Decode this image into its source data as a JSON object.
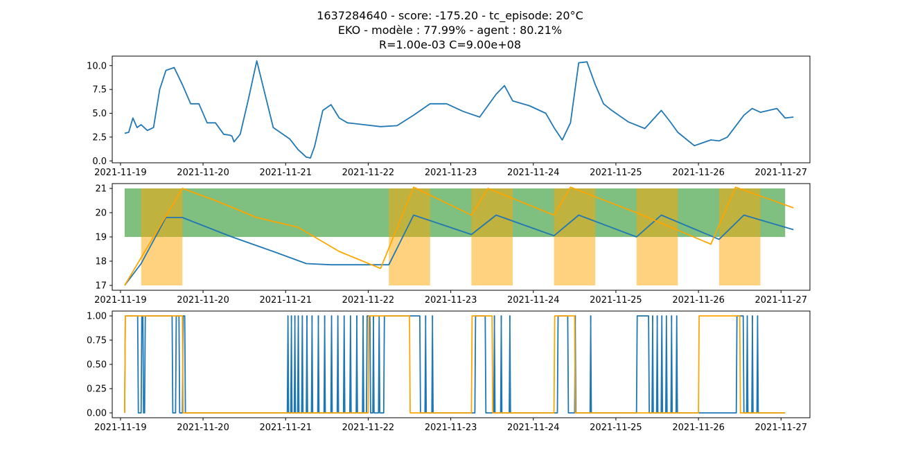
{
  "colors": {
    "blue": "#1f77b4",
    "orange": "#ffa500",
    "green": "#008000",
    "band_orange": "#ffa500"
  },
  "chart_data": {
    "title_lines": [
      "1637284640 - score: -175.20 - tc_episode: 20°C",
      "EKO - modèle : 77.99% - agent : 80.21%",
      "R=1.00e-03 C=9.00e+08"
    ],
    "x_range": [
      "2021-11-18T21:36",
      "2021-11-27T08:24"
    ],
    "x_ticks": [
      "2021-11-19",
      "2021-11-20",
      "2021-11-21",
      "2021-11-22",
      "2021-11-23",
      "2021-11-24",
      "2021-11-25",
      "2021-11-26",
      "2021-11-27"
    ],
    "panels": [
      {
        "type": "line",
        "ylim": [
          -0.2,
          11.0
        ],
        "y_ticks": [
          0.0,
          2.5,
          5.0,
          7.5,
          10.0
        ],
        "y_tick_labels": [
          "0.0",
          "2.5",
          "5.0",
          "7.5",
          "10.0"
        ],
        "series": [
          {
            "color": "blue",
            "points": [
              [
                "2021-11-19T01:12",
                2.9
              ],
              [
                "2021-11-19T02:24",
                3.0
              ],
              [
                "2021-11-19T03:36",
                4.5
              ],
              [
                "2021-11-19T04:48",
                3.5
              ],
              [
                "2021-11-19T06:00",
                3.8
              ],
              [
                "2021-11-19T07:48",
                3.2
              ],
              [
                "2021-11-19T09:36",
                3.5
              ],
              [
                "2021-11-19T11:24",
                7.5
              ],
              [
                "2021-11-19T13:12",
                9.5
              ],
              [
                "2021-11-19T15:36",
                9.8
              ],
              [
                "2021-11-19T18:00",
                8.0
              ],
              [
                "2021-11-19T20:24",
                6.0
              ],
              [
                "2021-11-19T22:48",
                6.0
              ],
              [
                "2021-11-20T01:12",
                4.0
              ],
              [
                "2021-11-20T03:36",
                4.0
              ],
              [
                "2021-11-20T06:00",
                2.8
              ],
              [
                "2021-11-20T07:48",
                2.7
              ],
              [
                "2021-11-20T08:24",
                2.6
              ],
              [
                "2021-11-20T09:00",
                2.0
              ],
              [
                "2021-11-20T10:48",
                2.8
              ],
              [
                "2021-11-20T13:12",
                6.5
              ],
              [
                "2021-11-20T15:36",
                10.5
              ],
              [
                "2021-11-20T18:00",
                7.0
              ],
              [
                "2021-11-20T20:24",
                3.5
              ],
              [
                "2021-11-20T22:48",
                2.9
              ],
              [
                "2021-11-21T01:12",
                2.3
              ],
              [
                "2021-11-21T03:36",
                1.2
              ],
              [
                "2021-11-21T06:00",
                0.4
              ],
              [
                "2021-11-21T07:12",
                0.3
              ],
              [
                "2021-11-21T08:24",
                1.5
              ],
              [
                "2021-11-21T10:48",
                5.3
              ],
              [
                "2021-11-21T13:12",
                5.9
              ],
              [
                "2021-11-21T15:36",
                4.5
              ],
              [
                "2021-11-21T18:00",
                4.0
              ],
              [
                "2021-11-21T22:48",
                3.8
              ],
              [
                "2021-11-22T03:36",
                3.6
              ],
              [
                "2021-11-22T08:24",
                3.7
              ],
              [
                "2021-11-22T13:12",
                4.8
              ],
              [
                "2021-11-22T18:00",
                6.0
              ],
              [
                "2021-11-22T22:48",
                6.0
              ],
              [
                "2021-11-23T03:36",
                5.2
              ],
              [
                "2021-11-23T08:24",
                4.6
              ],
              [
                "2021-11-23T13:12",
                7.0
              ],
              [
                "2021-11-23T15:36",
                7.9
              ],
              [
                "2021-11-23T18:00",
                6.3
              ],
              [
                "2021-11-23T22:48",
                5.8
              ],
              [
                "2021-11-24T03:36",
                5.0
              ],
              [
                "2021-11-24T06:00",
                3.5
              ],
              [
                "2021-11-24T08:24",
                2.2
              ],
              [
                "2021-11-24T10:48",
                4.0
              ],
              [
                "2021-11-24T13:12",
                10.3
              ],
              [
                "2021-11-24T15:36",
                10.4
              ],
              [
                "2021-11-24T18:00",
                8.0
              ],
              [
                "2021-11-24T20:24",
                6.0
              ],
              [
                "2021-11-24T22:48",
                5.3
              ],
              [
                "2021-11-25T03:36",
                4.1
              ],
              [
                "2021-11-25T08:24",
                3.4
              ],
              [
                "2021-11-25T13:12",
                5.3
              ],
              [
                "2021-11-25T15:36",
                4.2
              ],
              [
                "2021-11-25T18:00",
                3.0
              ],
              [
                "2021-11-25T22:48",
                1.6
              ],
              [
                "2021-11-26T03:36",
                2.2
              ],
              [
                "2021-11-26T06:00",
                2.1
              ],
              [
                "2021-11-26T08:24",
                2.5
              ],
              [
                "2021-11-26T13:12",
                4.8
              ],
              [
                "2021-11-26T15:36",
                5.5
              ],
              [
                "2021-11-26T18:00",
                5.1
              ],
              [
                "2021-11-26T22:48",
                5.5
              ],
              [
                "2021-11-27T01:12",
                4.5
              ],
              [
                "2021-11-27T03:36",
                4.6
              ]
            ]
          }
        ]
      },
      {
        "type": "line",
        "ylim": [
          16.8,
          21.2
        ],
        "y_ticks": [
          17,
          18,
          19,
          20,
          21
        ],
        "y_tick_labels": [
          "17",
          "18",
          "19",
          "20",
          "21"
        ],
        "comfort_band": {
          "y0": 19,
          "y1": 21,
          "x0": "2021-11-19T01:12",
          "x1": "2021-11-27T01:12",
          "color": "green",
          "opacity": 0.5
        },
        "occupancy_bands": {
          "y0": 17,
          "y1": 21,
          "color": "band_orange",
          "opacity": 0.5,
          "intervals": [
            [
              "2021-11-19T06:00",
              "2021-11-19T18:00"
            ],
            [
              "2021-11-22T06:00",
              "2021-11-22T18:00"
            ],
            [
              "2021-11-23T06:00",
              "2021-11-23T18:00"
            ],
            [
              "2021-11-24T06:00",
              "2021-11-24T18:00"
            ],
            [
              "2021-11-25T06:00",
              "2021-11-25T18:00"
            ],
            [
              "2021-11-26T06:00",
              "2021-11-26T18:00"
            ]
          ]
        },
        "series": [
          {
            "color": "blue",
            "points": [
              [
                "2021-11-19T01:12",
                17.0
              ],
              [
                "2021-11-19T06:00",
                17.9
              ],
              [
                "2021-11-19T13:12",
                19.8
              ],
              [
                "2021-11-19T18:00",
                19.8
              ],
              [
                "2021-11-20T08:24",
                19.0
              ],
              [
                "2021-11-20T20:24",
                18.4
              ],
              [
                "2021-11-21T06:00",
                17.9
              ],
              [
                "2021-11-21T13:12",
                17.85
              ],
              [
                "2021-11-22T06:00",
                17.85
              ],
              [
                "2021-11-22T13:12",
                19.9
              ],
              [
                "2021-11-23T06:00",
                19.1
              ],
              [
                "2021-11-23T13:12",
                19.9
              ],
              [
                "2021-11-24T06:00",
                19.05
              ],
              [
                "2021-11-24T13:12",
                19.9
              ],
              [
                "2021-11-25T06:00",
                19.0
              ],
              [
                "2021-11-25T13:12",
                19.9
              ],
              [
                "2021-11-26T06:00",
                18.9
              ],
              [
                "2021-11-26T13:12",
                19.9
              ],
              [
                "2021-11-27T03:36",
                19.3
              ]
            ]
          },
          {
            "color": "orange",
            "points": [
              [
                "2021-11-19T01:12",
                17.0
              ],
              [
                "2021-11-19T18:00",
                21.0
              ],
              [
                "2021-11-20T03:36",
                20.5
              ],
              [
                "2021-11-20T15:36",
                19.8
              ],
              [
                "2021-11-21T03:36",
                19.4
              ],
              [
                "2021-11-21T15:36",
                18.4
              ],
              [
                "2021-11-22T03:36",
                17.7
              ],
              [
                "2021-11-22T13:12",
                21.05
              ],
              [
                "2021-11-23T06:00",
                19.9
              ],
              [
                "2021-11-23T10:48",
                21.0
              ],
              [
                "2021-11-24T06:00",
                19.9
              ],
              [
                "2021-11-24T10:48",
                21.05
              ],
              [
                "2021-11-25T06:00",
                20.0
              ],
              [
                "2021-11-26T03:36",
                18.7
              ],
              [
                "2021-11-26T10:48",
                21.05
              ],
              [
                "2021-11-27T03:36",
                20.2
              ]
            ]
          }
        ]
      },
      {
        "type": "line",
        "ylim": [
          -0.05,
          1.05
        ],
        "y_ticks": [
          0.0,
          0.25,
          0.5,
          0.75,
          1.0
        ],
        "y_tick_labels": [
          "0.00",
          "0.25",
          "0.50",
          "0.75",
          "1.00"
        ],
        "series": [
          {
            "color": "blue",
            "step_on_intervals": [
              [
                "2021-11-19T01:12",
                "2021-11-19T05:00"
              ],
              [
                "2021-11-19T06:00",
                "2021-11-19T06:30"
              ],
              [
                "2021-11-19T07:00",
                "2021-11-19T15:00"
              ],
              [
                "2021-11-19T16:00",
                "2021-11-19T17:00"
              ],
              [
                "2021-11-19T18:00",
                "2021-11-19T18:40"
              ],
              [
                "2021-11-21T00:30",
                "2021-11-21T00:40"
              ],
              [
                "2021-11-21T01:30",
                "2021-11-21T01:40"
              ],
              [
                "2021-11-21T02:30",
                "2021-11-21T02:40"
              ],
              [
                "2021-11-21T03:30",
                "2021-11-21T03:40"
              ],
              [
                "2021-11-21T04:40",
                "2021-11-21T04:50"
              ],
              [
                "2021-11-21T06:00",
                "2021-11-21T06:10"
              ],
              [
                "2021-11-21T07:30",
                "2021-11-21T07:40"
              ],
              [
                "2021-11-21T09:20",
                "2021-11-21T09:30"
              ],
              [
                "2021-11-21T11:10",
                "2021-11-21T11:20"
              ],
              [
                "2021-11-21T13:10",
                "2021-11-21T13:20"
              ],
              [
                "2021-11-21T15:00",
                "2021-11-21T15:10"
              ],
              [
                "2021-11-21T16:50",
                "2021-11-21T17:00"
              ],
              [
                "2021-11-21T18:40",
                "2021-11-21T18:50"
              ],
              [
                "2021-11-21T20:30",
                "2021-11-21T20:40"
              ],
              [
                "2021-11-21T22:20",
                "2021-11-21T22:30"
              ],
              [
                "2021-11-21T23:30",
                "2021-11-22T00:30"
              ],
              [
                "2021-11-22T01:20",
                "2021-11-22T01:30"
              ],
              [
                "2021-11-22T03:00",
                "2021-11-22T03:10"
              ],
              [
                "2021-11-22T04:30",
                "2021-11-22T15:00"
              ],
              [
                "2021-11-22T16:30",
                "2021-11-22T16:40"
              ],
              [
                "2021-11-22T18:30",
                "2021-11-22T18:40"
              ],
              [
                "2021-11-23T07:00",
                "2021-11-23T10:00"
              ],
              [
                "2021-11-23T12:30",
                "2021-11-23T12:40"
              ],
              [
                "2021-11-23T14:30",
                "2021-11-23T14:40"
              ],
              [
                "2021-11-23T17:00",
                "2021-11-23T17:10"
              ],
              [
                "2021-11-24T07:00",
                "2021-11-24T10:00"
              ],
              [
                "2021-11-24T12:00",
                "2021-11-24T12:10"
              ],
              [
                "2021-11-24T16:30",
                "2021-11-24T16:40"
              ],
              [
                "2021-11-25T06:00",
                "2021-11-25T09:30"
              ],
              [
                "2021-11-25T10:30",
                "2021-11-25T10:40"
              ],
              [
                "2021-11-25T11:50",
                "2021-11-25T12:00"
              ],
              [
                "2021-11-25T13:10",
                "2021-11-25T13:20"
              ],
              [
                "2021-11-25T14:30",
                "2021-11-25T14:40"
              ],
              [
                "2021-11-25T16:00",
                "2021-11-25T16:10"
              ],
              [
                "2021-11-25T17:30",
                "2021-11-25T17:40"
              ],
              [
                "2021-11-26T11:00",
                "2021-11-26T13:00"
              ],
              [
                "2021-11-26T14:00",
                "2021-11-26T14:10"
              ],
              [
                "2021-11-26T15:30",
                "2021-11-26T15:40"
              ],
              [
                "2021-11-26T17:00",
                "2021-11-26T17:10"
              ]
            ]
          },
          {
            "color": "orange",
            "step_on_intervals": [
              [
                "2021-11-19T01:12",
                "2021-11-19T18:00"
              ],
              [
                "2021-11-22T00:00",
                "2021-11-22T12:00"
              ],
              [
                "2021-11-23T06:00",
                "2021-11-23T12:00"
              ],
              [
                "2021-11-24T06:00",
                "2021-11-24T12:00"
              ],
              [
                "2021-11-26T00:00",
                "2021-11-26T12:00"
              ]
            ]
          }
        ]
      }
    ]
  }
}
